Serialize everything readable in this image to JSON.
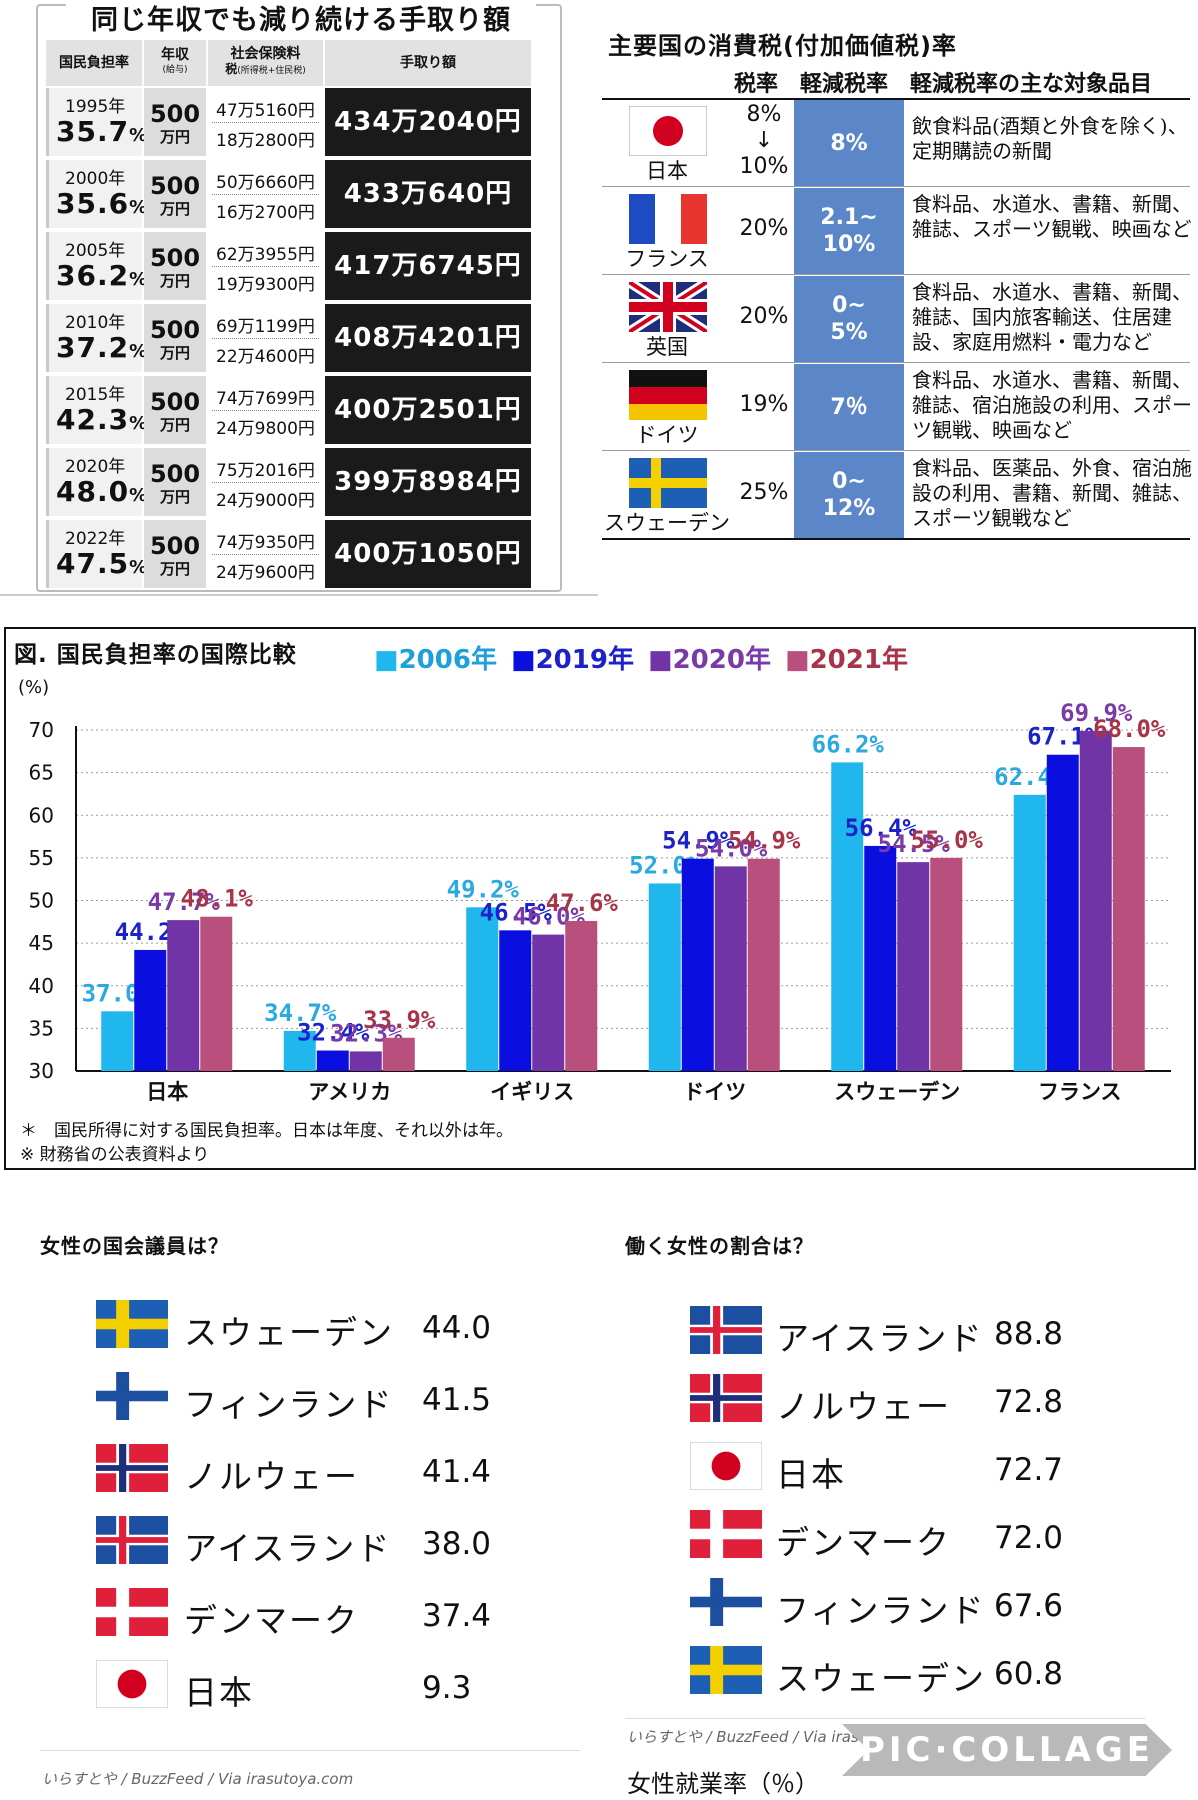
{
  "takehome": {
    "title": "同じ年収でも減り続ける手取り額",
    "headers": {
      "burden": "国民負担率",
      "income": "年収",
      "income_sub": "(給与)",
      "social": "社会保険料",
      "social_sub": "税",
      "social_sub2": "(所得税+住民税)",
      "takehome": "手取り額"
    },
    "rows": [
      {
        "year": "1995年",
        "rate": "35.7",
        "pct": "%",
        "income": "500",
        "income_unit": "万円",
        "social": "47万5160円",
        "tax": "18万2800円",
        "net": "434万2040円"
      },
      {
        "year": "2000年",
        "rate": "35.6",
        "pct": "%",
        "income": "500",
        "income_unit": "万円",
        "social": "50万6660円",
        "tax": "16万2700円",
        "net": "433万640円"
      },
      {
        "year": "2005年",
        "rate": "36.2",
        "pct": "%",
        "income": "500",
        "income_unit": "万円",
        "social": "62万3955円",
        "tax": "19万9300円",
        "net": "417万6745円"
      },
      {
        "year": "2010年",
        "rate": "37.2",
        "pct": "%",
        "income": "500",
        "income_unit": "万円",
        "social": "69万1199円",
        "tax": "22万4600円",
        "net": "408万4201円"
      },
      {
        "year": "2015年",
        "rate": "42.3",
        "pct": "%",
        "income": "500",
        "income_unit": "万円",
        "social": "74万7699円",
        "tax": "24万9800円",
        "net": "400万2501円"
      },
      {
        "year": "2020年",
        "rate": "48.0",
        "pct": "%",
        "income": "500",
        "income_unit": "万円",
        "social": "75万2016円",
        "tax": "24万9000円",
        "net": "399万8984円"
      },
      {
        "year": "2022年",
        "rate": "47.5",
        "pct": "%",
        "income": "500",
        "income_unit": "万円",
        "social": "74万9350円",
        "tax": "24万9600円",
        "net": "400万1050円"
      }
    ]
  },
  "vat": {
    "title": "主要国の消費税(付加価値税)率",
    "headers": {
      "rate": "税率",
      "reduced": "軽減税率",
      "items": "軽減税率の主な対象品目"
    },
    "rows": [
      {
        "country": "日本",
        "flag": "japan-flag",
        "rate1": "8%",
        "arrow": "↓",
        "rate2": "10%",
        "reduced1": "8%",
        "reduced2": "",
        "items": "飲食料品(酒類と外食を除く)、定期購読の新聞"
      },
      {
        "country": "フランス",
        "flag": "france-flag",
        "rate1": "20%",
        "arrow": "",
        "rate2": "",
        "reduced1": "2.1~",
        "reduced2": "10%",
        "items": "食料品、水道水、書籍、新聞、雑誌、スポーツ観戦、映画など"
      },
      {
        "country": "英国",
        "flag": "uk-flag",
        "rate1": "20%",
        "arrow": "",
        "rate2": "",
        "reduced1": "0~",
        "reduced2": "5%",
        "items": "食料品、水道水、書籍、新聞、雑誌、国内旅客輸送、住居建設、家庭用燃料・電力など"
      },
      {
        "country": "ドイツ",
        "flag": "germany-flag",
        "rate1": "19%",
        "arrow": "",
        "rate2": "",
        "reduced1": "7％",
        "reduced2": "",
        "items": "食料品、水道水、書籍、新聞、雑誌、宿泊施設の利用、スポーツ観戦、映画など"
      },
      {
        "country": "スウェーデン",
        "flag": "sweden-flag",
        "rate1": "25%",
        "arrow": "",
        "rate2": "",
        "reduced1": "0~",
        "reduced2": "12%",
        "items": "食料品、医薬品、外食、宿泊施設の利用、書籍、新聞、雑誌、スポーツ観戦など"
      }
    ]
  },
  "chart_data": {
    "type": "bar",
    "title": "図. 国民負担率の国際比較",
    "ylabel": "(%)",
    "ylim": [
      30,
      70
    ],
    "yticks": [
      "30",
      "35",
      "40",
      "45",
      "50",
      "55",
      "60",
      "65",
      "70"
    ],
    "grid": true,
    "legend_position": "top",
    "categories": [
      "日本",
      "アメリカ",
      "イギリス",
      "ドイツ",
      "スウェーデン",
      "フランス"
    ],
    "series": [
      {
        "name": "2006年",
        "color": "#1fb7ee",
        "label_color": "#29a9e0",
        "values": [
          37.0,
          34.7,
          49.2,
          52.0,
          66.2,
          62.4
        ],
        "labels": [
          "37.0%",
          "34.7%",
          "49.2%",
          "52.0%",
          "66.2%",
          "62.4%"
        ]
      },
      {
        "name": "2019年",
        "color": "#0a0fe0",
        "label_color": "#1a22c8",
        "values": [
          44.2,
          32.4,
          46.5,
          54.9,
          56.4,
          67.1
        ],
        "labels": [
          "44.2%",
          "32.4%",
          "46.5%",
          "54.9%",
          "56.4%",
          "67.1%"
        ]
      },
      {
        "name": "2020年",
        "color": "#7134a6",
        "label_color": "#7a3aa8",
        "values": [
          47.7,
          32.3,
          46.0,
          54.0,
          54.5,
          69.9
        ],
        "labels": [
          "47.7%",
          "32.3%",
          "46.0%",
          "54.0%",
          "54.5%",
          "69.9%"
        ]
      },
      {
        "name": "2021年",
        "color": "#b84f7c",
        "label_color": "#a8344a",
        "values": [
          48.1,
          33.9,
          47.6,
          54.9,
          55.0,
          68.0
        ],
        "labels": [
          "48.1%",
          "33.9%",
          "47.6%",
          "54.9%",
          "55.0%",
          "68.0%"
        ]
      }
    ],
    "notes": [
      "＊　国民所得に対する国民負担率。日本は年度、それ以外は年。",
      "※ 財務省の公表資料より"
    ]
  },
  "women_parliament": {
    "title": "女性の国会議員は？",
    "items": [
      {
        "name": "スウェーデン",
        "value": "44.0",
        "flag": "sweden-flag"
      },
      {
        "name": "フィンランド",
        "value": "41.5",
        "flag": "finland-flag"
      },
      {
        "name": "ノルウェー",
        "value": "41.4",
        "flag": "norway-flag"
      },
      {
        "name": "アイスランド",
        "value": "38.0",
        "flag": "iceland-flag"
      },
      {
        "name": "デンマーク",
        "value": "37.4",
        "flag": "denmark-flag"
      },
      {
        "name": "日本",
        "value": "9.3",
        "flag": "japan-flag"
      }
    ],
    "credit": "いらすとや / BuzzFeed / Via irasutoya.com"
  },
  "women_work": {
    "title": "働く女性の割合は？",
    "items": [
      {
        "name": "アイスランド",
        "value": "88.8",
        "flag": "iceland-flag"
      },
      {
        "name": "ノルウェー",
        "value": "72.8",
        "flag": "norway-flag"
      },
      {
        "name": "日本",
        "value": "72.7",
        "flag": "japan-flag"
      },
      {
        "name": "デンマーク",
        "value": "72.0",
        "flag": "denmark-flag"
      },
      {
        "name": "フィンランド",
        "value": "67.6",
        "flag": "finland-flag"
      },
      {
        "name": "スウェーデン",
        "value": "60.8",
        "flag": "sweden-flag"
      }
    ],
    "credit": "いらすとや / BuzzFeed / Via irasutoya.com",
    "footer": "女性就業率（％）"
  },
  "watermark": "PIC·COLLAGE"
}
